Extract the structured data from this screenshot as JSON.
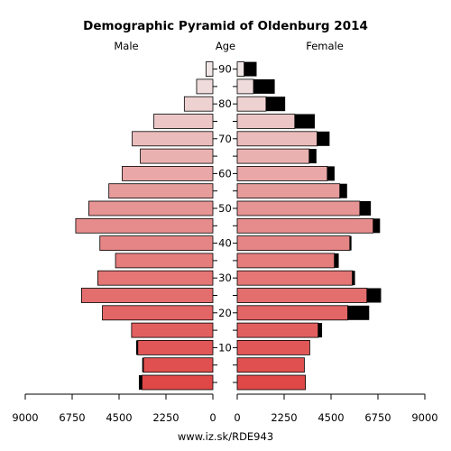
{
  "chart_data": {
    "type": "bar",
    "subtype": "population-pyramid",
    "title": "Demographic Pyramid of Oldenburg 2014",
    "headers": {
      "male": "Male",
      "age": "Age",
      "female": "Female"
    },
    "source": "www.iz.sk/RDE943",
    "age_groups": [
      "0-4",
      "5-9",
      "10-14",
      "15-19",
      "20-24",
      "25-29",
      "30-34",
      "35-39",
      "40-44",
      "45-49",
      "50-54",
      "55-59",
      "60-64",
      "65-69",
      "70-74",
      "75-79",
      "80-84",
      "85-89",
      "90+"
    ],
    "age_tick_labels": [
      "10",
      "20",
      "30",
      "40",
      "50",
      "60",
      "70",
      "80",
      "90"
    ],
    "x_tick_labels_male": [
      "9000",
      "6750",
      "4500",
      "2250",
      "0"
    ],
    "x_tick_labels_female": [
      "0",
      "2250",
      "4500",
      "6750",
      "9000"
    ],
    "xlim": [
      0,
      9000
    ],
    "series": [
      {
        "name": "Male",
        "values": [
          3400,
          3330,
          3600,
          3900,
          5300,
          6300,
          5520,
          4670,
          5420,
          6580,
          5950,
          4990,
          4350,
          3480,
          3870,
          2830,
          1370,
          780,
          330
        ],
        "excess": [
          150,
          60,
          80,
          0,
          0,
          0,
          0,
          0,
          0,
          0,
          0,
          0,
          0,
          0,
          0,
          0,
          0,
          0,
          0
        ]
      },
      {
        "name": "Female",
        "values": [
          3270,
          3220,
          3480,
          3880,
          5300,
          6220,
          5520,
          4660,
          5400,
          6520,
          5880,
          4920,
          4320,
          3450,
          3830,
          2760,
          1380,
          780,
          330
        ],
        "excess": [
          0,
          0,
          0,
          190,
          1030,
          680,
          130,
          210,
          80,
          330,
          530,
          350,
          350,
          350,
          600,
          960,
          920,
          1020,
          600
        ]
      }
    ],
    "colors": {
      "excess": "#000000",
      "gradient_young": "#e04848",
      "gradient_mid": "#e79a9a",
      "gradient_old": "#f0e6e6"
    }
  }
}
